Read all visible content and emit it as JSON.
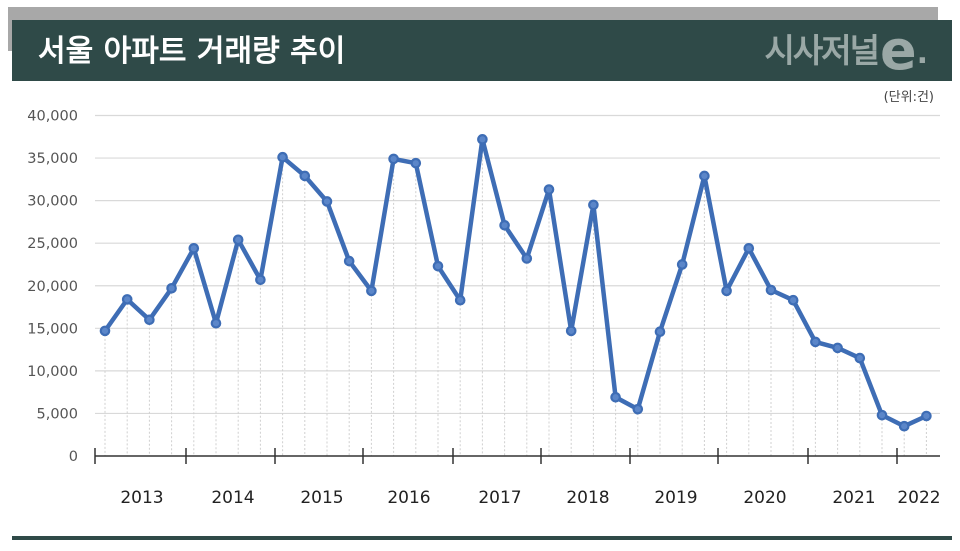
{
  "header": {
    "title": "서울 아파트 거래량 추이",
    "logo_text": "시사저널",
    "logo_e": "e",
    "logo_dot": "."
  },
  "unit_label": "(단위:건)",
  "colors": {
    "header_bg": "#2f4a48",
    "header_band": "#a8a8a8",
    "line": "#3e6db5",
    "grid": "#d9d9d9",
    "logo": "#9aa8a6"
  },
  "chart_data": {
    "type": "line",
    "title": "서울 아파트 거래량 추이",
    "unit": "(단위:건)",
    "xlabel": "",
    "ylabel": "",
    "ylim": [
      0,
      40000
    ],
    "yticks": [
      0,
      5000,
      10000,
      15000,
      20000,
      25000,
      30000,
      35000,
      40000
    ],
    "ytick_labels": [
      "0",
      "5,000",
      "10,000",
      "15,000",
      "20,000",
      "25,000",
      "30,000",
      "35,000",
      "40,000"
    ],
    "year_labels": [
      "2013",
      "2014",
      "2015",
      "2016",
      "2017",
      "2018",
      "2019",
      "2020",
      "2021",
      "2022"
    ],
    "grid": true,
    "legend": null,
    "x": [
      "2013Q1",
      "2013Q2",
      "2013Q3",
      "2013Q4",
      "2014Q1",
      "2014Q2",
      "2014Q3",
      "2014Q4",
      "2015Q1",
      "2015Q2",
      "2015Q3",
      "2015Q4",
      "2016Q1",
      "2016Q2",
      "2016Q3",
      "2016Q4",
      "2017Q1",
      "2017Q2",
      "2017Q3",
      "2017Q4",
      "2018Q1",
      "2018Q2",
      "2018Q3",
      "2018Q4",
      "2019Q1",
      "2019Q2",
      "2019Q3",
      "2019Q4",
      "2020Q1",
      "2020Q2",
      "2020Q3",
      "2020Q4",
      "2021Q1",
      "2021Q2",
      "2021Q3",
      "2021Q4",
      "2022Q1",
      "2022Q2"
    ],
    "series": [
      {
        "name": "서울 아파트 거래량",
        "values": [
          14700,
          18400,
          16000,
          19700,
          24400,
          15600,
          25400,
          20700,
          35100,
          32900,
          29900,
          22900,
          19400,
          34900,
          34400,
          22300,
          18300,
          37200,
          27100,
          23200,
          31300,
          14700,
          29500,
          6900,
          5500,
          14600,
          22500,
          32900,
          19400,
          24400,
          19500,
          18300,
          13400,
          12700,
          11500,
          4800,
          3500,
          4700
        ]
      }
    ]
  }
}
